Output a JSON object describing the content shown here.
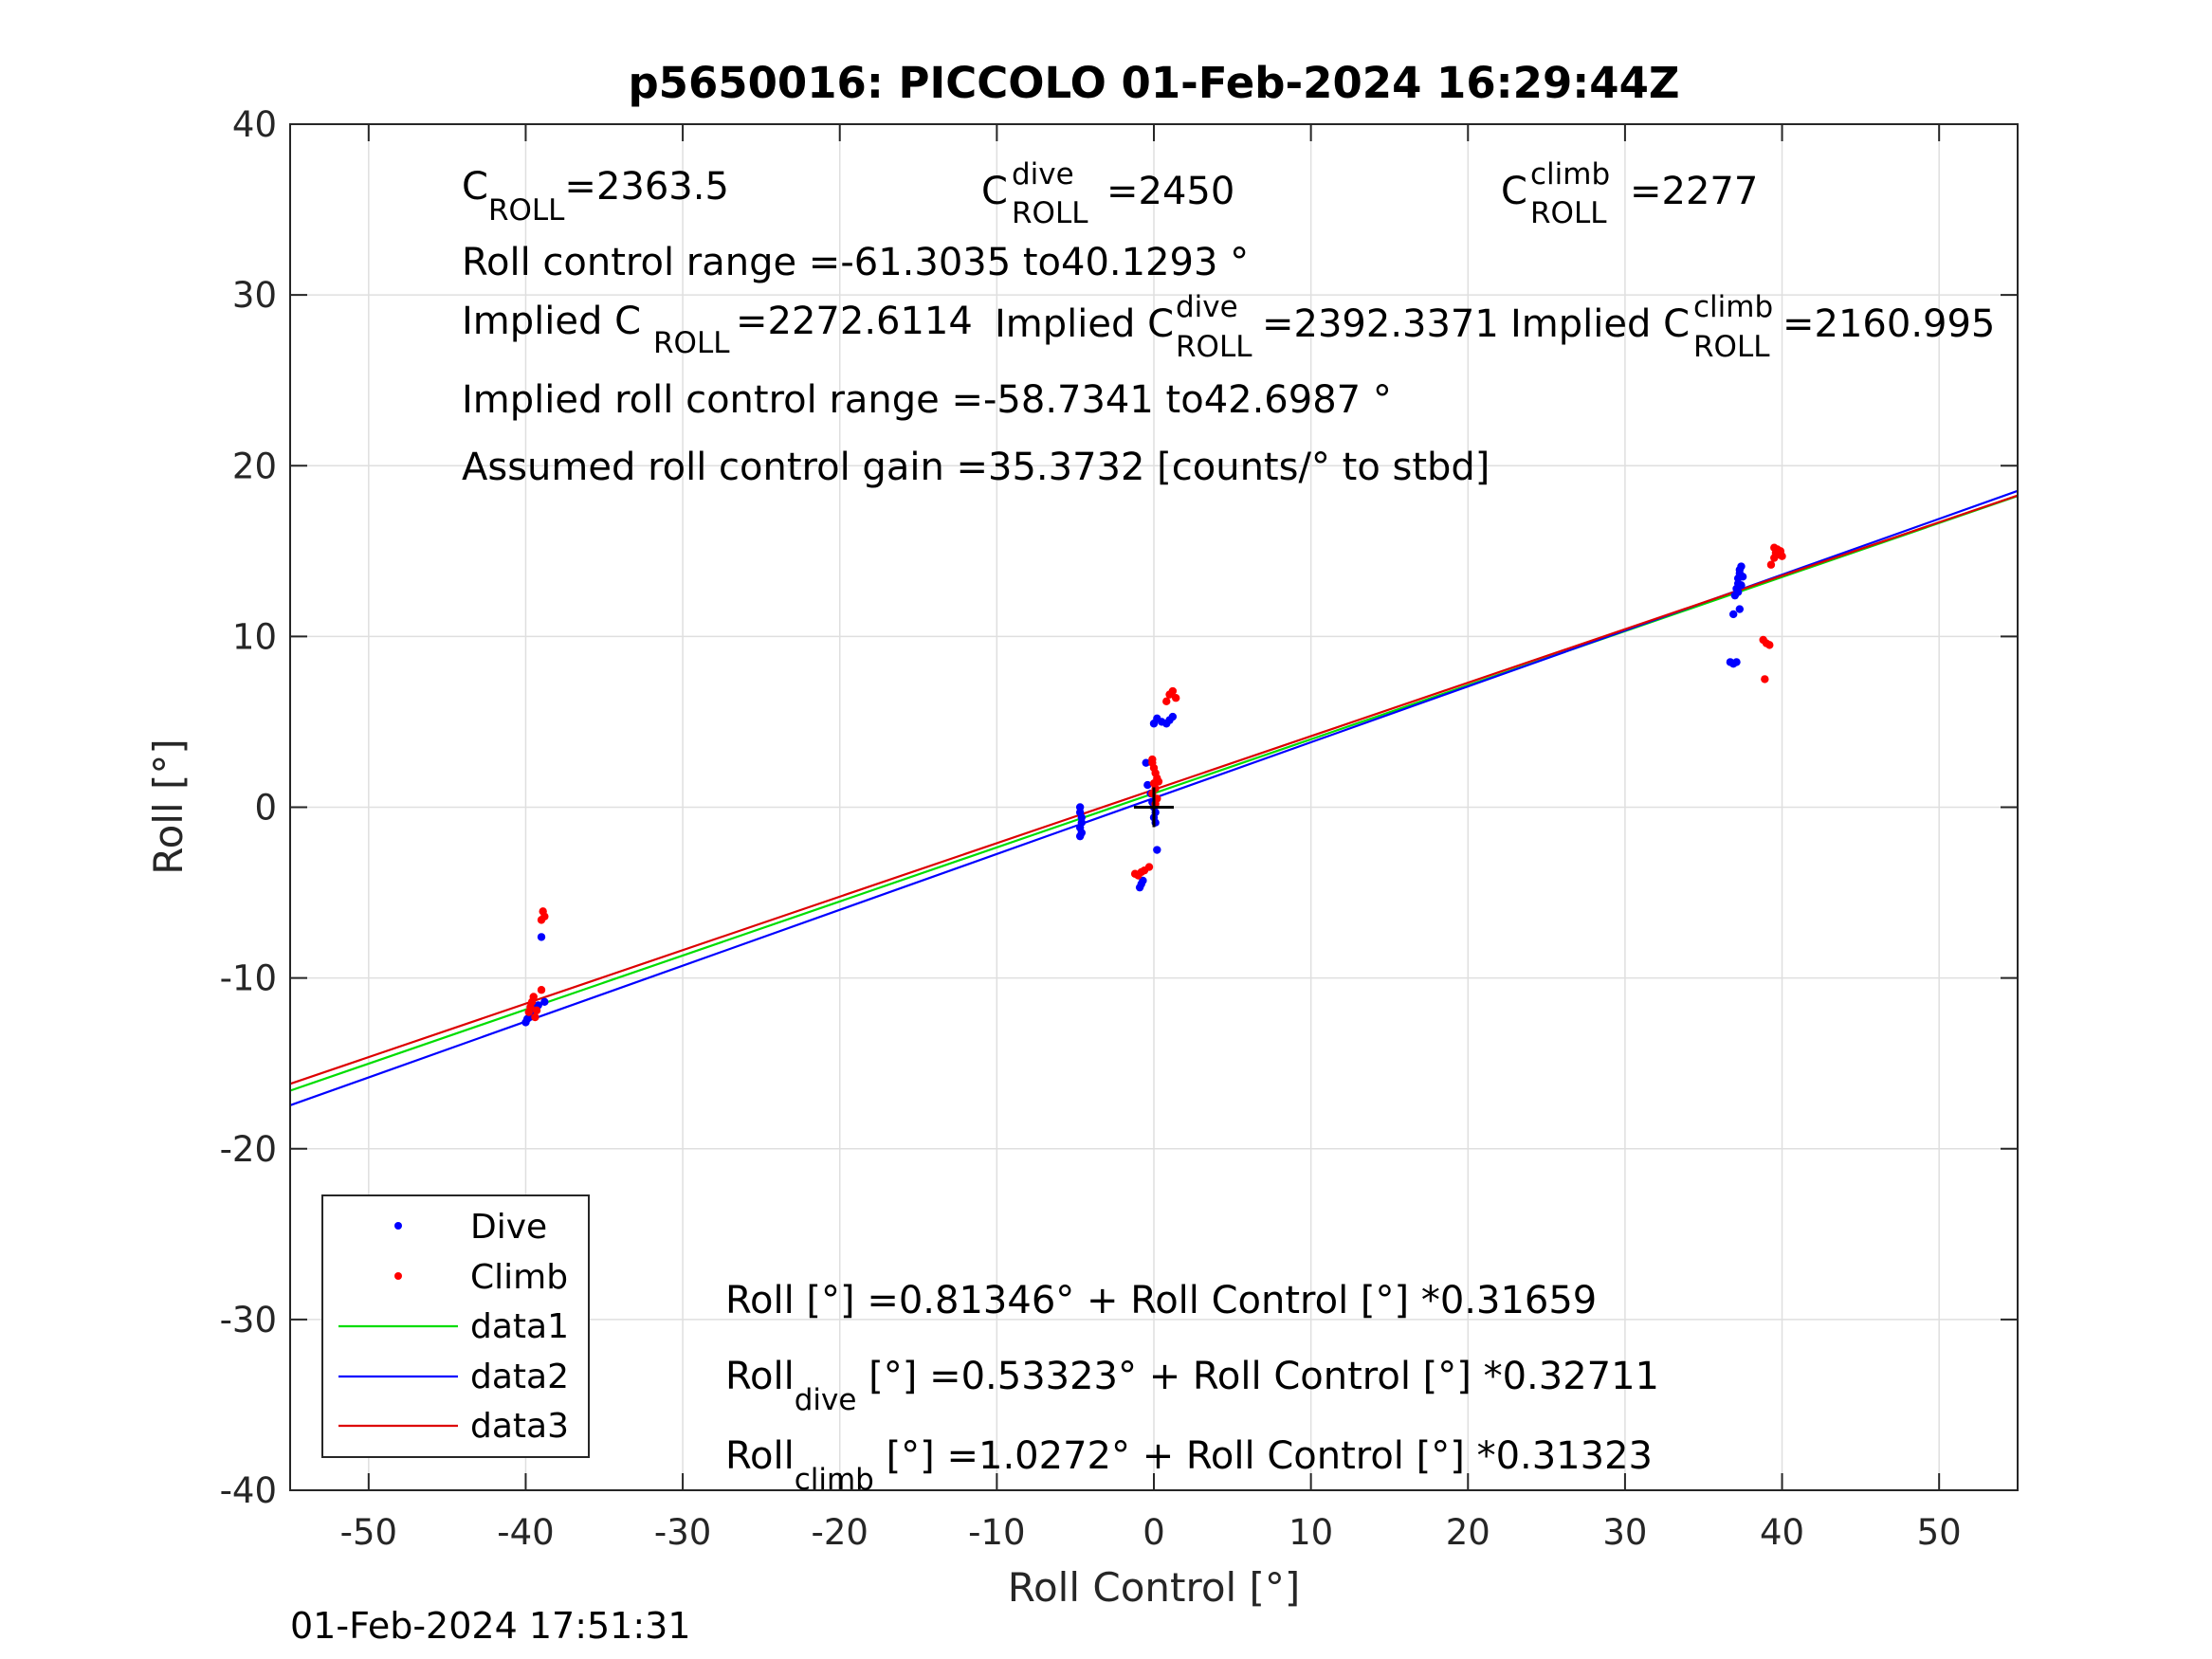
{
  "chart_data": {
    "type": "scatter",
    "title": "p5650016: PICCOLO 01-Feb-2024 16:29:44Z",
    "xlabel": "Roll Control [°]",
    "ylabel": "Roll [°]",
    "xlim": [
      -55,
      55
    ],
    "ylim": [
      -40,
      40
    ],
    "xticks": [
      -50,
      -40,
      -30,
      -20,
      -10,
      0,
      10,
      20,
      30,
      40,
      50
    ],
    "yticks": [
      -40,
      -30,
      -20,
      -10,
      0,
      10,
      20,
      30,
      40
    ],
    "xtick_labels": [
      "-50",
      "-40",
      "-30",
      "-20",
      "-10",
      "0",
      "10",
      "20",
      "30",
      "40",
      "50"
    ],
    "ytick_labels": [
      "-40",
      "-30",
      "-20",
      "-10",
      "0",
      "10",
      "20",
      "30",
      "40"
    ],
    "grid": true,
    "legend": {
      "position": "bottom-left",
      "entries": [
        "Dive",
        "Climb",
        "data1",
        "data2",
        "data3"
      ]
    },
    "colors": {
      "dive": "#0000ff",
      "climb": "#ff0000",
      "data1": "#00dd00",
      "data2": "#0000ff",
      "data3": "#dd0000"
    },
    "series": [
      {
        "name": "Dive",
        "kind": "points",
        "points": [
          [
            -40.0,
            -12.6
          ],
          [
            -39.9,
            -12.4
          ],
          [
            -39.7,
            -12.2
          ],
          [
            -39.5,
            -12.0
          ],
          [
            -39.4,
            -11.8
          ],
          [
            -39.2,
            -11.6
          ],
          [
            -39.0,
            -7.6
          ],
          [
            -38.8,
            -11.4
          ],
          [
            -4.7,
            0.0
          ],
          [
            -4.7,
            -0.3
          ],
          [
            -4.6,
            -0.6
          ],
          [
            -4.6,
            -0.9
          ],
          [
            -4.7,
            -1.2
          ],
          [
            -4.6,
            -1.5
          ],
          [
            -4.7,
            -1.7
          ],
          [
            -0.9,
            -4.7
          ],
          [
            -0.8,
            -4.5
          ],
          [
            -0.7,
            -4.3
          ],
          [
            -0.5,
            2.6
          ],
          [
            -0.4,
            1.3
          ],
          [
            -0.2,
            0.8
          ],
          [
            -0.1,
            0.3
          ],
          [
            0.0,
            0.0
          ],
          [
            0.1,
            -0.3
          ],
          [
            0.0,
            -0.6
          ],
          [
            0.1,
            -0.9
          ],
          [
            0.2,
            -2.5
          ],
          [
            0.0,
            4.9
          ],
          [
            0.2,
            5.2
          ],
          [
            0.8,
            4.9
          ],
          [
            1.0,
            5.1
          ],
          [
            1.2,
            5.3
          ],
          [
            0.5,
            5.0
          ],
          [
            36.7,
            8.5
          ],
          [
            36.9,
            8.4
          ],
          [
            37.1,
            8.5
          ],
          [
            36.9,
            11.3
          ],
          [
            37.3,
            11.6
          ],
          [
            37.0,
            12.4
          ],
          [
            37.1,
            12.8
          ],
          [
            37.2,
            13.1
          ],
          [
            37.2,
            13.4
          ],
          [
            37.3,
            13.7
          ],
          [
            37.3,
            13.9
          ],
          [
            37.4,
            14.1
          ],
          [
            37.5,
            13.5
          ],
          [
            37.4,
            13.0
          ],
          [
            37.2,
            12.6
          ]
        ]
      },
      {
        "name": "Climb",
        "kind": "points",
        "points": [
          [
            -39.8,
            -12.0
          ],
          [
            -39.7,
            -11.7
          ],
          [
            -39.6,
            -11.4
          ],
          [
            -39.5,
            -11.1
          ],
          [
            -39.4,
            -12.3
          ],
          [
            -39.3,
            -11.9
          ],
          [
            -39.0,
            -10.7
          ],
          [
            -38.9,
            -6.1
          ],
          [
            -38.8,
            -6.4
          ],
          [
            -39.0,
            -6.6
          ],
          [
            -1.2,
            -3.9
          ],
          [
            -1.0,
            -4.0
          ],
          [
            -0.8,
            -3.8
          ],
          [
            -0.6,
            -3.7
          ],
          [
            -0.3,
            -3.5
          ],
          [
            -0.1,
            2.6
          ],
          [
            0.0,
            2.3
          ],
          [
            0.1,
            2.0
          ],
          [
            0.2,
            1.7
          ],
          [
            0.0,
            1.4
          ],
          [
            0.1,
            1.1
          ],
          [
            -0.1,
            0.8
          ],
          [
            0.2,
            0.5
          ],
          [
            0.1,
            0.2
          ],
          [
            -0.1,
            2.8
          ],
          [
            0.3,
            1.5
          ],
          [
            0.8,
            6.2
          ],
          [
            1.0,
            6.6
          ],
          [
            1.2,
            6.8
          ],
          [
            1.4,
            6.4
          ],
          [
            38.8,
            9.8
          ],
          [
            39.0,
            9.6
          ],
          [
            39.2,
            9.5
          ],
          [
            38.9,
            7.5
          ],
          [
            39.3,
            14.2
          ],
          [
            39.5,
            14.6
          ],
          [
            39.6,
            14.9
          ],
          [
            39.7,
            15.1
          ],
          [
            39.8,
            14.8
          ],
          [
            39.9,
            15.0
          ],
          [
            40.0,
            14.7
          ],
          [
            39.5,
            15.2
          ]
        ]
      },
      {
        "name": "data1",
        "kind": "line",
        "intercept": 0.81346,
        "slope": 0.31659,
        "x": [
          -55,
          55
        ]
      },
      {
        "name": "data2",
        "kind": "line",
        "intercept": 0.53323,
        "slope": 0.32711,
        "x": [
          -55,
          55
        ]
      },
      {
        "name": "data3",
        "kind": "line",
        "intercept": 1.0272,
        "slope": 0.31323,
        "x": [
          -55,
          55
        ]
      }
    ],
    "marker": {
      "label": "current",
      "x": 0,
      "y": 0
    },
    "annotations": {
      "c_roll_base": "C",
      "c_roll_sub": "ROLL",
      "c_roll_value": "=2363.5",
      "c_dive_base": "C",
      "c_dive_sup": "dive",
      "c_dive_sub": "ROLL",
      "c_dive_value": "=2450",
      "c_climb_base": "C",
      "c_climb_sup": "climb",
      "c_climb_sub": "ROLL",
      "c_climb_value": "=2277",
      "roll_range": "Roll control range =-61.3035 to40.1293 °",
      "implied_c_roll_base": "Implied C",
      "implied_c_roll_sub": "ROLL",
      "implied_c_roll_value": " =2272.6114",
      "implied_c_dive_base": "Implied C",
      "implied_c_dive_sup": "dive",
      "implied_c_dive_sub": "ROLL",
      "implied_c_dive_value": " =2392.3371",
      "implied_c_climb_base": "Implied C",
      "implied_c_climb_sup": "climb",
      "implied_c_climb_sub": "ROLL",
      "implied_c_climb_value": " =2160.995",
      "implied_range": "Implied roll control range =-58.7341 to42.6987 °",
      "gain": "Assumed roll control gain =35.3732 [counts/° to stbd]",
      "fit_all": "Roll [°] =0.81346° + Roll Control [°] *0.31659",
      "fit_dive_base": "Roll",
      "fit_dive_sub": "dive",
      "fit_dive_rest": " [°] =0.53323° + Roll Control [°] *0.32711",
      "fit_climb_base": "Roll",
      "fit_climb_sub": "climb",
      "fit_climb_rest": " [°] =1.0272° + Roll Control [°] *0.31323"
    },
    "timestamp": "01-Feb-2024 17:51:31"
  }
}
